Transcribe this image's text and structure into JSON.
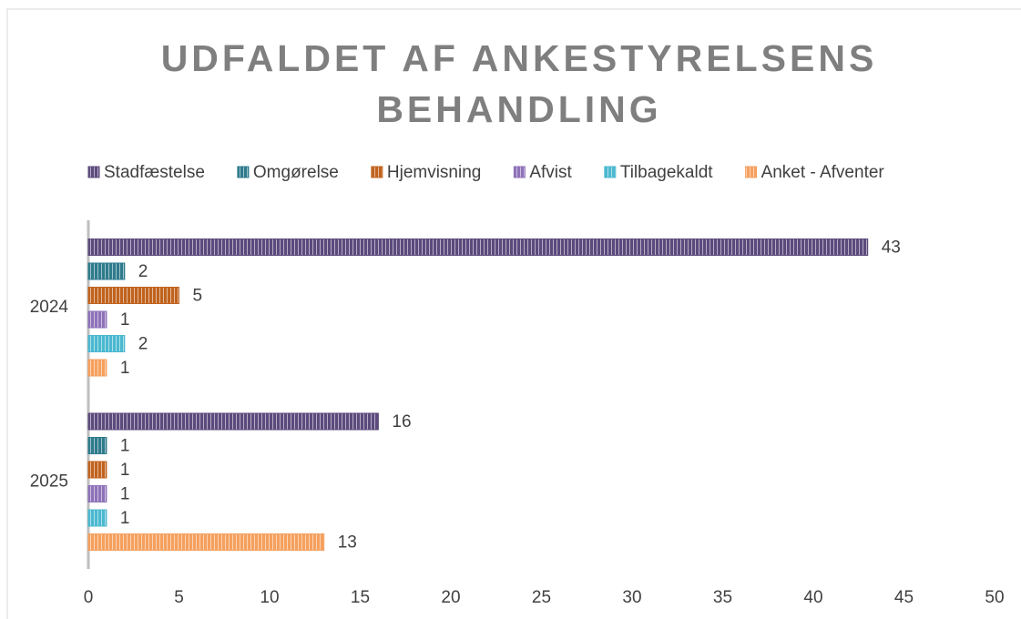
{
  "chart_data": {
    "type": "hbar",
    "title": "UDFALDET AF ANKESTYRELSENS BEHANDLING",
    "categories": [
      "2024",
      "2025"
    ],
    "series": [
      {
        "name": "Stadfæstelse",
        "color": "#5c4a7d",
        "values": [
          43,
          16
        ]
      },
      {
        "name": "Omgørelse",
        "color": "#2e7b8c",
        "values": [
          2,
          1
        ]
      },
      {
        "name": "Hjemvisning",
        "color": "#c0631e",
        "values": [
          5,
          1
        ]
      },
      {
        "name": "Afvist",
        "color": "#8e72b8",
        "values": [
          1,
          1
        ]
      },
      {
        "name": "Tilbagekaldt",
        "color": "#4bb8d0",
        "values": [
          2,
          1
        ]
      },
      {
        "name": "Anket - Afventer",
        "color": "#f5a05e",
        "values": [
          1,
          13
        ]
      }
    ],
    "xlim": [
      0,
      50
    ],
    "xticks": [
      0,
      5,
      10,
      15,
      20,
      25,
      30,
      35,
      40,
      45,
      50
    ],
    "legend": "top",
    "data_labels": true
  }
}
